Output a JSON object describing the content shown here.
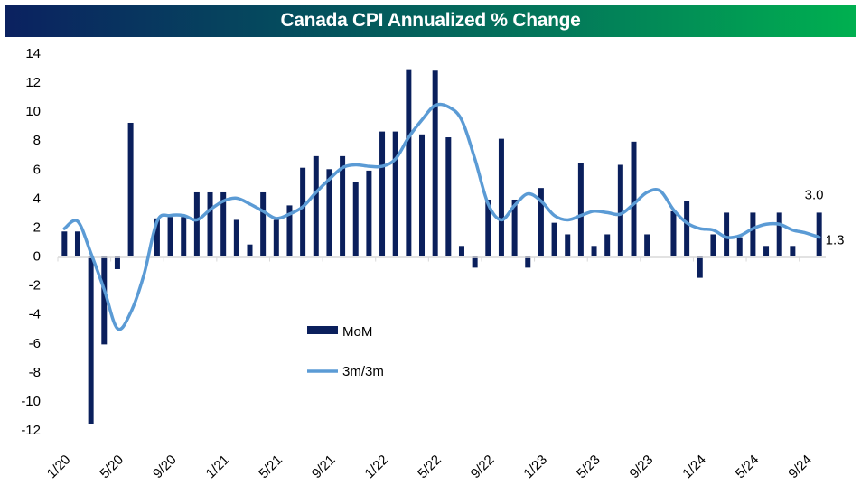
{
  "title": "Canada CPI Annualized % Change",
  "colors": {
    "bar": "#0a1f5c",
    "line": "#5b9bd5",
    "axis": "#d9d9d9",
    "title_start": "#0b2160",
    "title_end": "#00b050"
  },
  "chart_data": {
    "type": "bar",
    "title": "Canada CPI Annualized % Change",
    "xlabel": "",
    "ylabel": "",
    "ylim": [
      -12,
      14
    ],
    "yticks": [
      14,
      12,
      10,
      8,
      6,
      4,
      2,
      0,
      -2,
      -4,
      -6,
      -8,
      -10,
      -12
    ],
    "grid": false,
    "legend_position": "center-left",
    "categories": [
      "1/20",
      "2/20",
      "3/20",
      "4/20",
      "5/20",
      "6/20",
      "7/20",
      "8/20",
      "9/20",
      "10/20",
      "11/20",
      "12/20",
      "1/21",
      "2/21",
      "3/21",
      "4/21",
      "5/21",
      "6/21",
      "7/21",
      "8/21",
      "9/21",
      "10/21",
      "11/21",
      "12/21",
      "1/22",
      "2/22",
      "3/22",
      "4/22",
      "5/22",
      "6/22",
      "7/22",
      "8/22",
      "9/22",
      "10/22",
      "11/22",
      "12/22",
      "1/23",
      "2/23",
      "3/23",
      "4/23",
      "5/23",
      "6/23",
      "7/23",
      "8/23",
      "9/23",
      "10/23",
      "11/23",
      "12/23",
      "1/24",
      "2/24",
      "3/24",
      "4/24",
      "5/24",
      "6/24",
      "7/24",
      "8/24",
      "9/24",
      "10/24"
    ],
    "xtick_labels": [
      "1/20",
      "5/20",
      "9/20",
      "1/21",
      "5/21",
      "9/21",
      "1/22",
      "5/22",
      "9/22",
      "1/23",
      "5/23",
      "9/23",
      "1/24",
      "5/24",
      "9/24"
    ],
    "series": [
      {
        "name": "MoM",
        "type": "bar",
        "values": [
          1.7,
          1.7,
          -11.6,
          -6.1,
          -0.9,
          9.2,
          0.0,
          2.6,
          2.7,
          2.7,
          4.4,
          4.4,
          4.4,
          2.5,
          0.8,
          4.4,
          2.5,
          3.5,
          6.1,
          6.9,
          6.0,
          6.9,
          5.1,
          5.9,
          8.6,
          8.6,
          12.9,
          8.4,
          12.8,
          8.2,
          0.7,
          -0.8,
          3.9,
          8.1,
          3.9,
          -0.8,
          4.7,
          2.3,
          1.5,
          6.4,
          0.7,
          1.5,
          6.3,
          7.9,
          1.5,
          0.0,
          3.1,
          3.8,
          -1.5,
          1.5,
          3.0,
          1.3,
          3.0,
          0.7,
          3.0,
          0.7,
          0.0,
          3.0
        ]
      },
      {
        "name": "3m/3m",
        "type": "line",
        "values": [
          1.9,
          2.4,
          0.2,
          -2.3,
          -5.0,
          -3.9,
          -1.3,
          2.4,
          2.8,
          2.8,
          2.5,
          3.2,
          3.8,
          4.0,
          3.6,
          3.1,
          2.6,
          2.9,
          3.4,
          4.4,
          5.3,
          6.1,
          6.3,
          6.2,
          6.2,
          6.7,
          8.2,
          9.4,
          10.4,
          10.3,
          9.4,
          6.7,
          3.6,
          2.5,
          3.5,
          4.3,
          3.8,
          2.8,
          2.5,
          2.8,
          3.1,
          3.0,
          2.9,
          3.6,
          4.4,
          4.5,
          3.2,
          2.3,
          1.9,
          1.8,
          1.3,
          1.4,
          1.9,
          2.2,
          2.2,
          1.8,
          1.6,
          1.3
        ]
      }
    ],
    "annotations": [
      {
        "label": "3.0",
        "series": "MoM",
        "category": "10/24"
      },
      {
        "label": "1.3",
        "series": "3m/3m",
        "category": "10/24"
      }
    ]
  },
  "legend": {
    "items": [
      {
        "label": "MoM",
        "icon": "bar-swatch"
      },
      {
        "label": "3m/3m",
        "icon": "line-swatch"
      }
    ]
  }
}
